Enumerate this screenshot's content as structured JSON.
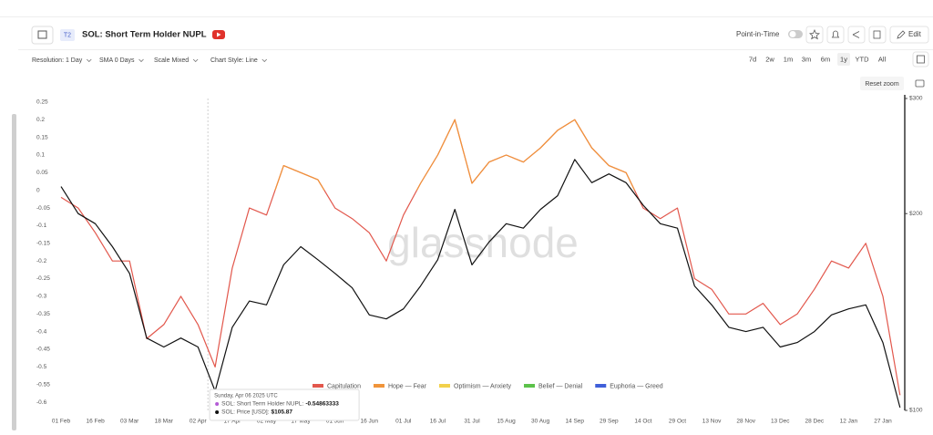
{
  "header": {
    "badge": "T2",
    "title": "SOL: Short Term Holder NUPL",
    "point_in_time": "Point-in-Time",
    "edit": "Edit"
  },
  "toolbar": {
    "options": [
      "Resolution: 1 Day",
      "SMA 0 Days",
      "Scale Mixed",
      "Chart Style: Line"
    ],
    "ranges": [
      "7d",
      "2w",
      "1m",
      "3m",
      "6m",
      "1y",
      "YTD",
      "All"
    ],
    "reset_zoom": "Reset zoom"
  },
  "chart_data": {
    "type": "line",
    "watermark": "glassnode",
    "categories": [
      "01 Feb",
      null,
      "16 Feb",
      null,
      "03 Mar",
      null,
      "18 Mar",
      null,
      "02 Apr",
      null,
      "17 Apr",
      null,
      "02 May",
      null,
      "17 May",
      null,
      "01 Jun",
      null,
      "16 Jun",
      null,
      "01 Jul",
      null,
      "16 Jul",
      null,
      "31 Jul",
      null,
      "15 Aug",
      null,
      "30 Aug",
      null,
      "14 Sep",
      null,
      "29 Sep",
      null,
      "14 Oct",
      null,
      "29 Oct",
      null,
      "13 Nov",
      null,
      "28 Nov",
      null,
      "13 Dec",
      null,
      "28 Dec",
      null,
      "12 Jan",
      null,
      "27 Jan",
      null
    ],
    "series": [
      {
        "color": "#e2574c",
        "values": [
          -0.02,
          -0.05,
          -0.12,
          -0.2,
          -0.2,
          -0.42,
          -0.38,
          -0.3,
          -0.38,
          -0.5,
          -0.22,
          -0.05,
          -0.07,
          0.07,
          0.05,
          0.03,
          -0.05,
          -0.08,
          -0.12,
          -0.2,
          -0.07,
          0.02,
          0.1,
          0.2,
          0.02,
          0.08,
          0.1,
          0.08,
          0.12,
          0.17,
          0.2,
          0.12,
          0.07,
          0.05,
          -0.05,
          -0.08,
          -0.05,
          -0.25,
          -0.28,
          -0.35,
          -0.35,
          -0.32,
          -0.38,
          -0.35,
          -0.28,
          -0.2,
          -0.22,
          -0.15,
          -0.3,
          -0.58
        ]
      },
      {
        "color": "#111111",
        "axis": "y2",
        "values": [
          220,
          200,
          193,
          178,
          162,
          129,
          125,
          129,
          125,
          107,
          134,
          147,
          145,
          167,
          178,
          170,
          162,
          154,
          140,
          138,
          143,
          155,
          170,
          203,
          167,
          181,
          193,
          190,
          203,
          213,
          242,
          223,
          230,
          223,
          206,
          193,
          190,
          155,
          145,
          134,
          132,
          134,
          125,
          127,
          132,
          140,
          143,
          145,
          127,
          101
        ]
      }
    ],
    "ylim": [
      -0.623,
      0.26
    ],
    "yticks": [
      0.25,
      0.2,
      0.15,
      0.1,
      0.05,
      0,
      -0.05,
      -0.1,
      -0.15,
      -0.2,
      -0.25,
      -0.3,
      -0.35,
      -0.4,
      -0.45,
      -0.5,
      -0.55,
      -0.6
    ],
    "y2lim": [
      100,
      300
    ],
    "y2log": true,
    "y2ticks": [
      {
        "value": 100,
        "label": "$100"
      },
      {
        "value": 200,
        "label": "$200"
      },
      {
        "value": 300,
        "label": "$300"
      }
    ],
    "legend": [
      {
        "name": "Capitulation",
        "color": "#e2574c"
      },
      {
        "name": "Hope — Fear",
        "color": "#f0943a"
      },
      {
        "name": "Optimism — Anxiety",
        "color": "#f2d14b"
      },
      {
        "name": "Belief — Denial",
        "color": "#5cc24a"
      },
      {
        "name": "Euphoria — Greed",
        "color": "#3f5fd9"
      }
    ],
    "tooltip": {
      "date": "Sunday, Apr 06 2025 UTC",
      "rows": [
        {
          "label": "SOL: Short Term Holder NUPL:",
          "value": "-0.54863333",
          "color": "#b45cd6"
        },
        {
          "label": "SOL: Price [USD]:",
          "value": "$105.87",
          "color": "#111111"
        }
      ]
    }
  }
}
